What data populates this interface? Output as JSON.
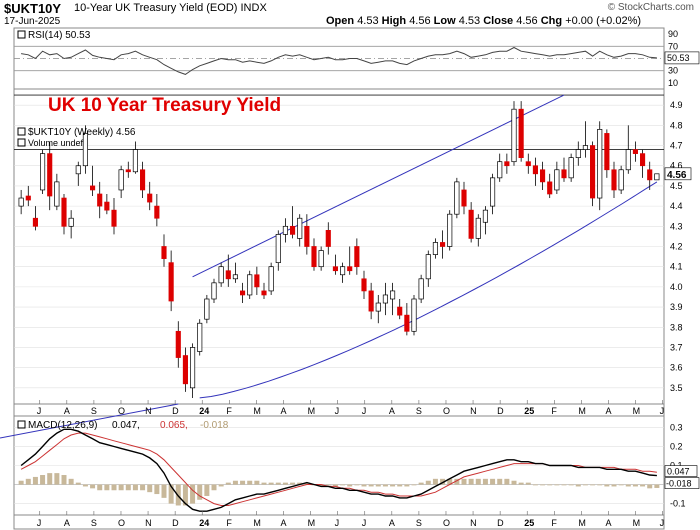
{
  "header": {
    "symbol": "$UKT10Y",
    "description": "10-Year UK Treasury Yield (EOD)",
    "exchange": "INDX",
    "date": "17-Jun-2025",
    "brand": "© StockCharts.com",
    "ohlc": {
      "open_label": "Open",
      "open": "4.53",
      "high_label": "High",
      "high": "4.56",
      "low_label": "Low",
      "low": "4.53",
      "close_label": "Close",
      "close": "4.56",
      "chg_label": "Chg",
      "chg": "+0.00 (+0.02%)"
    }
  },
  "rsi_panel": {
    "legend": "RSI(14) 50.53",
    "ticks": [
      "90",
      "70",
      "50",
      "30",
      "10"
    ],
    "current_label": "50.53"
  },
  "price_panel": {
    "title": "UK 10 Year Treasury Yield",
    "legend": "$UKT10Y (Weekly) 4.56",
    "volume_label": "Volume undef",
    "ticks": [
      "4.9",
      "4.8",
      "4.7",
      "4.6",
      "4.5",
      "4.4",
      "4.3",
      "4.2",
      "4.1",
      "4.0",
      "3.9",
      "3.8",
      "3.7",
      "3.6",
      "3.5"
    ],
    "current_label": "4.56"
  },
  "macd_panel": {
    "legend_name": "MACD(12,26,9)",
    "legend_macd": "0.047,",
    "legend_signal": "0.065,",
    "legend_hist": "-0.018",
    "ticks": [
      "0.3",
      "0.2",
      "0.1",
      "0.0",
      "-0.1"
    ],
    "macd_label": "0.047",
    "hist_label": "-0.018"
  },
  "x_axis": {
    "labels": [
      "J",
      "A",
      "S",
      "O",
      "N",
      "D",
      "24",
      "F",
      "M",
      "A",
      "M",
      "J",
      "J",
      "A",
      "S",
      "O",
      "N",
      "D",
      "25",
      "F",
      "M",
      "A",
      "M",
      "J"
    ]
  },
  "colors": {
    "up_candle": "#ffffff",
    "down_candle": "#dd0000",
    "channel": "#3333bb",
    "macd": "#000000",
    "signal": "#cc3333",
    "histogram": "#c8b89a",
    "title": "#e00000",
    "grid": "#e0e0e0"
  },
  "chart_data": {
    "type": "candlestick",
    "frequency": "weekly",
    "y_range": [
      3.42,
      4.98
    ],
    "candles": [
      [
        4.4,
        4.48,
        4.36,
        4.44
      ],
      [
        4.45,
        4.5,
        4.4,
        4.43
      ],
      [
        4.34,
        4.4,
        4.28,
        4.3
      ],
      [
        4.48,
        4.68,
        4.46,
        4.66
      ],
      [
        4.66,
        4.72,
        4.38,
        4.45
      ],
      [
        4.4,
        4.56,
        4.38,
        4.52
      ],
      [
        4.44,
        4.46,
        4.26,
        4.3
      ],
      [
        4.3,
        4.38,
        4.24,
        4.34
      ],
      [
        4.56,
        4.62,
        4.5,
        4.6
      ],
      [
        4.6,
        4.8,
        4.56,
        4.76
      ],
      [
        4.5,
        4.6,
        4.45,
        4.48
      ],
      [
        4.46,
        4.52,
        4.34,
        4.4
      ],
      [
        4.42,
        4.46,
        4.36,
        4.38
      ],
      [
        4.38,
        4.44,
        4.26,
        4.3
      ],
      [
        4.48,
        4.6,
        4.44,
        4.58
      ],
      [
        4.58,
        4.62,
        4.54,
        4.57
      ],
      [
        4.57,
        4.72,
        4.56,
        4.68
      ],
      [
        4.58,
        4.62,
        4.44,
        4.48
      ],
      [
        4.46,
        4.52,
        4.38,
        4.42
      ],
      [
        4.4,
        4.46,
        4.3,
        4.34
      ],
      [
        4.2,
        4.26,
        4.1,
        4.14
      ],
      [
        4.12,
        4.18,
        3.88,
        3.93
      ],
      [
        3.78,
        3.83,
        3.6,
        3.65
      ],
      [
        3.66,
        3.7,
        3.48,
        3.52
      ],
      [
        3.5,
        3.72,
        3.45,
        3.7
      ],
      [
        3.68,
        3.84,
        3.66,
        3.82
      ],
      [
        3.84,
        3.96,
        3.82,
        3.94
      ],
      [
        3.94,
        4.04,
        3.92,
        4.02
      ],
      [
        4.02,
        4.12,
        4.0,
        4.1
      ],
      [
        4.08,
        4.16,
        4.0,
        4.04
      ],
      [
        4.04,
        4.12,
        4.02,
        4.06
      ],
      [
        3.98,
        4.02,
        3.92,
        3.96
      ],
      [
        3.96,
        4.08,
        3.94,
        4.06
      ],
      [
        4.06,
        4.1,
        3.96,
        4.0
      ],
      [
        3.98,
        4.02,
        3.94,
        3.96
      ],
      [
        3.98,
        4.12,
        3.96,
        4.1
      ],
      [
        4.12,
        4.28,
        4.08,
        4.26
      ],
      [
        4.26,
        4.34,
        4.22,
        4.3
      ],
      [
        4.3,
        4.4,
        4.24,
        4.26
      ],
      [
        4.24,
        4.36,
        4.2,
        4.34
      ],
      [
        4.3,
        4.36,
        4.16,
        4.2
      ],
      [
        4.2,
        4.24,
        4.08,
        4.1
      ],
      [
        4.1,
        4.2,
        4.08,
        4.18
      ],
      [
        4.28,
        4.32,
        4.16,
        4.2
      ],
      [
        4.1,
        4.16,
        4.06,
        4.08
      ],
      [
        4.06,
        4.12,
        4.02,
        4.1
      ],
      [
        4.1,
        4.2,
        4.06,
        4.08
      ],
      [
        4.2,
        4.24,
        4.06,
        4.1
      ],
      [
        4.04,
        4.08,
        3.94,
        3.98
      ],
      [
        3.98,
        4.02,
        3.84,
        3.88
      ],
      [
        3.88,
        3.96,
        3.82,
        3.92
      ],
      [
        3.92,
        4.02,
        3.86,
        3.96
      ],
      [
        3.94,
        4.02,
        3.86,
        3.98
      ],
      [
        3.9,
        3.94,
        3.84,
        3.86
      ],
      [
        3.86,
        3.92,
        3.76,
        3.78
      ],
      [
        3.78,
        3.96,
        3.76,
        3.94
      ],
      [
        3.94,
        4.06,
        3.92,
        4.04
      ],
      [
        4.04,
        4.18,
        4.0,
        4.16
      ],
      [
        4.16,
        4.24,
        4.14,
        4.22
      ],
      [
        4.22,
        4.28,
        4.14,
        4.2
      ],
      [
        4.2,
        4.38,
        4.18,
        4.36
      ],
      [
        4.36,
        4.54,
        4.34,
        4.52
      ],
      [
        4.48,
        4.52,
        4.36,
        4.4
      ],
      [
        4.38,
        4.42,
        4.22,
        4.24
      ],
      [
        4.24,
        4.36,
        4.2,
        4.34
      ],
      [
        4.32,
        4.4,
        4.26,
        4.38
      ],
      [
        4.4,
        4.56,
        4.36,
        4.54
      ],
      [
        4.54,
        4.66,
        4.52,
        4.62
      ],
      [
        4.62,
        4.66,
        4.56,
        4.6
      ],
      [
        4.62,
        4.92,
        4.6,
        4.88
      ],
      [
        4.88,
        4.92,
        4.62,
        4.64
      ],
      [
        4.62,
        4.66,
        4.56,
        4.6
      ],
      [
        4.6,
        4.64,
        4.5,
        4.56
      ],
      [
        4.58,
        4.62,
        4.48,
        4.52
      ],
      [
        4.52,
        4.56,
        4.44,
        4.46
      ],
      [
        4.48,
        4.62,
        4.46,
        4.58
      ],
      [
        4.58,
        4.64,
        4.52,
        4.54
      ],
      [
        4.54,
        4.66,
        4.52,
        4.64
      ],
      [
        4.64,
        4.72,
        4.6,
        4.68
      ],
      [
        4.68,
        4.82,
        4.64,
        4.7
      ],
      [
        4.7,
        4.72,
        4.4,
        4.44
      ],
      [
        4.44,
        4.82,
        4.38,
        4.78
      ],
      [
        4.76,
        4.78,
        4.54,
        4.58
      ],
      [
        4.58,
        4.62,
        4.44,
        4.48
      ],
      [
        4.48,
        4.6,
        4.46,
        4.58
      ],
      [
        4.58,
        4.8,
        4.56,
        4.68
      ],
      [
        4.68,
        4.72,
        4.62,
        4.66
      ],
      [
        4.66,
        4.68,
        4.54,
        4.6
      ],
      [
        4.58,
        4.62,
        4.48,
        4.53
      ],
      [
        4.53,
        4.56,
        4.53,
        4.56
      ]
    ],
    "rsi": [
      58,
      56,
      50,
      62,
      56,
      58,
      50,
      52,
      58,
      64,
      55,
      52,
      50,
      48,
      56,
      58,
      62,
      56,
      52,
      48,
      40,
      34,
      28,
      24,
      32,
      38,
      42,
      46,
      50,
      48,
      48,
      44,
      46,
      44,
      42,
      46,
      52,
      56,
      54,
      56,
      52,
      48,
      50,
      52,
      48,
      48,
      50,
      50,
      46,
      42,
      44,
      46,
      46,
      42,
      40,
      46,
      50,
      54,
      56,
      56,
      58,
      62,
      58,
      52,
      54,
      56,
      60,
      62,
      62,
      68,
      62,
      60,
      58,
      56,
      54,
      56,
      56,
      58,
      60,
      62,
      54,
      62,
      56,
      52,
      54,
      58,
      58,
      56,
      52,
      51
    ],
    "macd": [
      0.1,
      0.13,
      0.16,
      0.2,
      0.24,
      0.27,
      0.29,
      0.29,
      0.28,
      0.26,
      0.24,
      0.22,
      0.21,
      0.2,
      0.19,
      0.18,
      0.17,
      0.16,
      0.14,
      0.11,
      0.06,
      -0.01,
      -0.06,
      -0.1,
      -0.13,
      -0.14,
      -0.14,
      -0.13,
      -0.12,
      -0.1,
      -0.08,
      -0.07,
      -0.06,
      -0.05,
      -0.05,
      -0.04,
      -0.03,
      -0.02,
      -0.01,
      0.0,
      0.01,
      0.0,
      -0.01,
      -0.01,
      -0.02,
      -0.02,
      -0.03,
      -0.03,
      -0.04,
      -0.05,
      -0.05,
      -0.06,
      -0.06,
      -0.07,
      -0.07,
      -0.06,
      -0.05,
      -0.03,
      -0.01,
      0.01,
      0.03,
      0.05,
      0.07,
      0.08,
      0.09,
      0.1,
      0.11,
      0.12,
      0.13,
      0.13,
      0.12,
      0.12,
      0.11,
      0.11,
      0.1,
      0.1,
      0.1,
      0.1,
      0.09,
      0.09,
      0.09,
      0.09,
      0.08,
      0.08,
      0.08,
      0.07,
      0.07,
      0.06,
      0.05,
      0.047
    ],
    "signal": [
      0.08,
      0.1,
      0.12,
      0.15,
      0.18,
      0.21,
      0.24,
      0.26,
      0.27,
      0.27,
      0.26,
      0.25,
      0.24,
      0.23,
      0.22,
      0.21,
      0.2,
      0.19,
      0.18,
      0.16,
      0.13,
      0.09,
      0.05,
      0.01,
      -0.03,
      -0.06,
      -0.08,
      -0.1,
      -0.11,
      -0.11,
      -0.1,
      -0.09,
      -0.08,
      -0.07,
      -0.06,
      -0.05,
      -0.04,
      -0.03,
      -0.02,
      -0.01,
      0.0,
      0.0,
      0.0,
      -0.01,
      -0.01,
      -0.02,
      -0.02,
      -0.03,
      -0.03,
      -0.04,
      -0.04,
      -0.05,
      -0.05,
      -0.06,
      -0.06,
      -0.06,
      -0.06,
      -0.05,
      -0.04,
      -0.02,
      0.0,
      0.02,
      0.04,
      0.05,
      0.06,
      0.07,
      0.08,
      0.09,
      0.1,
      0.11,
      0.11,
      0.11,
      0.11,
      0.11,
      0.1,
      0.1,
      0.1,
      0.1,
      0.1,
      0.09,
      0.09,
      0.09,
      0.09,
      0.09,
      0.08,
      0.08,
      0.08,
      0.07,
      0.07,
      0.065
    ],
    "channel_upper": [
      [
        0,
        4.05
      ],
      [
        89,
        4.95
      ]
    ],
    "channel_lower": "curve from 3.45 at week 25 to 4.52 at week 89",
    "horizontal_lines": [
      4.68,
      4.95
    ]
  }
}
